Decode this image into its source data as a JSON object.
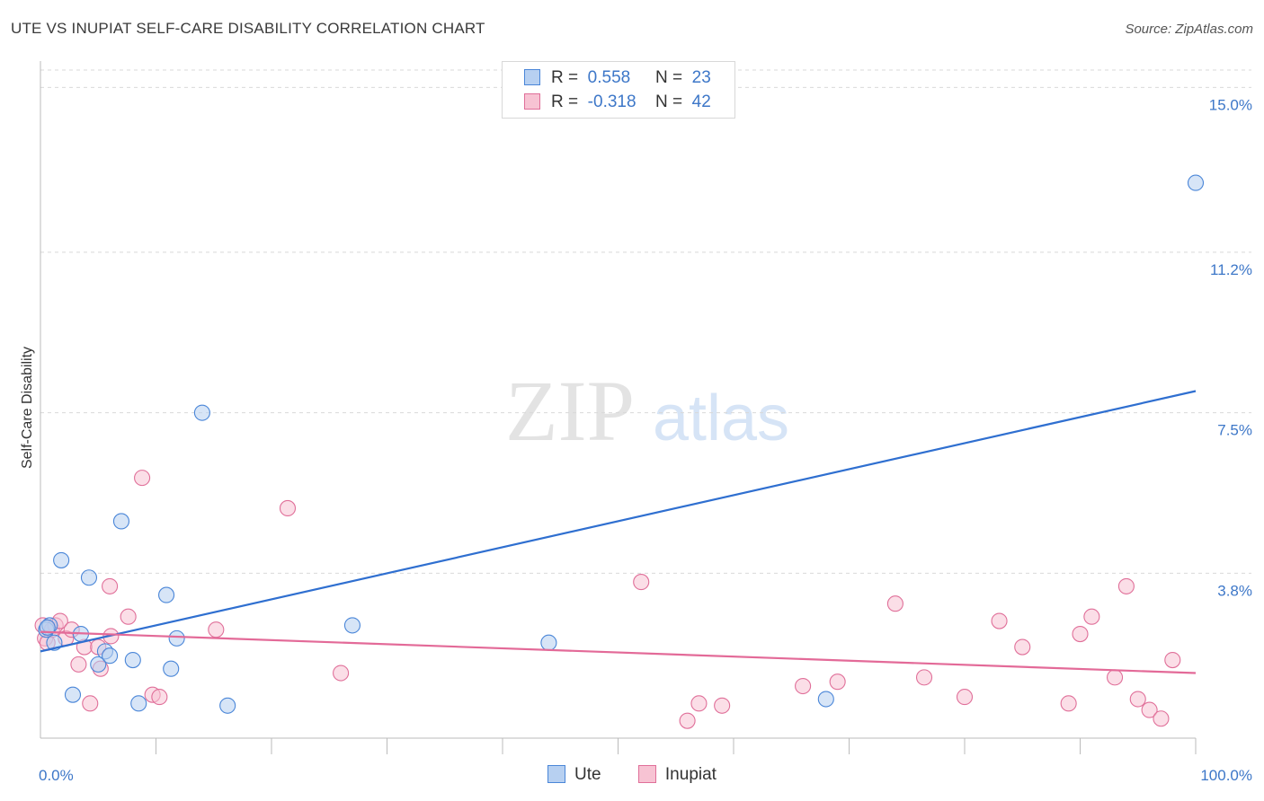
{
  "title": "UTE VS INUPIAT SELF-CARE DISABILITY CORRELATION CHART",
  "source": "Source: ZipAtlas.com",
  "watermark": {
    "zip": "ZIP",
    "atlas": "atlas"
  },
  "legend": {
    "rows": [
      {
        "r_label": "R =",
        "r_value": "0.558",
        "n_label": "N =",
        "n_value": "23"
      },
      {
        "r_label": "R =",
        "r_value": "-0.318",
        "n_label": "N =",
        "n_value": "42"
      }
    ]
  },
  "colors": {
    "ute": "#4a86d8",
    "ute_fill": "#b7d0f1",
    "inupiat": "#e06f99",
    "inupiat_fill": "#f7c3d3",
    "grid": "#d9d9d9",
    "tick_label": "#3d77c8"
  },
  "chart_data": {
    "type": "scatter",
    "title": "UTE VS INUPIAT SELF-CARE DISABILITY CORRELATION CHART",
    "xlabel": "",
    "ylabel": "Self-Care Disability",
    "xlim": [
      0,
      100
    ],
    "ylim": [
      0,
      15.4
    ],
    "x_tick_labels": [
      "0.0%",
      "100.0%"
    ],
    "y_ticks": [
      3.8,
      7.5,
      11.2,
      15.0
    ],
    "y_tick_labels": [
      "3.8%",
      "7.5%",
      "11.2%",
      "15.0%"
    ],
    "grid": true,
    "series": [
      {
        "name": "Ute",
        "r": 0.558,
        "n": 23,
        "trend": {
          "x": [
            0,
            100
          ],
          "y": [
            2.0,
            8.0
          ]
        },
        "points": [
          {
            "x": 0.5,
            "y": 2.5
          },
          {
            "x": 0.8,
            "y": 2.6
          },
          {
            "x": 1.2,
            "y": 2.2
          },
          {
            "x": 1.8,
            "y": 4.1
          },
          {
            "x": 2.8,
            "y": 1.0
          },
          {
            "x": 3.5,
            "y": 2.4
          },
          {
            "x": 4.2,
            "y": 3.7
          },
          {
            "x": 5.0,
            "y": 1.7
          },
          {
            "x": 5.6,
            "y": 2.0
          },
          {
            "x": 6.0,
            "y": 1.9
          },
          {
            "x": 7.0,
            "y": 5.0
          },
          {
            "x": 8.0,
            "y": 1.8
          },
          {
            "x": 8.5,
            "y": 0.8
          },
          {
            "x": 10.9,
            "y": 3.3
          },
          {
            "x": 11.3,
            "y": 1.6
          },
          {
            "x": 11.8,
            "y": 2.3
          },
          {
            "x": 14.0,
            "y": 7.5
          },
          {
            "x": 16.2,
            "y": 0.75
          },
          {
            "x": 27.0,
            "y": 2.6
          },
          {
            "x": 44.0,
            "y": 2.2
          },
          {
            "x": 68.0,
            "y": 0.9
          },
          {
            "x": 100.0,
            "y": 12.8
          },
          {
            "x": 0.6,
            "y": 2.55
          }
        ]
      },
      {
        "name": "Inupiat",
        "r": -0.318,
        "n": 42,
        "trend": {
          "x": [
            0,
            100
          ],
          "y": [
            2.45,
            1.5
          ]
        },
        "points": [
          {
            "x": 0.2,
            "y": 2.6
          },
          {
            "x": 0.4,
            "y": 2.3
          },
          {
            "x": 0.6,
            "y": 2.2
          },
          {
            "x": 1.0,
            "y": 2.5
          },
          {
            "x": 1.3,
            "y": 2.6
          },
          {
            "x": 1.7,
            "y": 2.7
          },
          {
            "x": 2.2,
            "y": 2.3
          },
          {
            "x": 2.7,
            "y": 2.5
          },
          {
            "x": 3.3,
            "y": 1.7
          },
          {
            "x": 3.8,
            "y": 2.1
          },
          {
            "x": 4.3,
            "y": 0.8
          },
          {
            "x": 5.0,
            "y": 2.1
          },
          {
            "x": 5.2,
            "y": 1.6
          },
          {
            "x": 6.0,
            "y": 3.5
          },
          {
            "x": 6.1,
            "y": 2.35
          },
          {
            "x": 7.6,
            "y": 2.8
          },
          {
            "x": 8.8,
            "y": 6.0
          },
          {
            "x": 9.7,
            "y": 1.0
          },
          {
            "x": 10.3,
            "y": 0.95
          },
          {
            "x": 15.2,
            "y": 2.5
          },
          {
            "x": 21.4,
            "y": 5.3
          },
          {
            "x": 26.0,
            "y": 1.5
          },
          {
            "x": 52.0,
            "y": 3.6
          },
          {
            "x": 56.0,
            "y": 0.4
          },
          {
            "x": 57.0,
            "y": 0.8
          },
          {
            "x": 59.0,
            "y": 0.75
          },
          {
            "x": 66.0,
            "y": 1.2
          },
          {
            "x": 69.0,
            "y": 1.3
          },
          {
            "x": 74.0,
            "y": 3.1
          },
          {
            "x": 76.5,
            "y": 1.4
          },
          {
            "x": 80.0,
            "y": 0.95
          },
          {
            "x": 83.0,
            "y": 2.7
          },
          {
            "x": 85.0,
            "y": 2.1
          },
          {
            "x": 89.0,
            "y": 0.8
          },
          {
            "x": 90.0,
            "y": 2.4
          },
          {
            "x": 91.0,
            "y": 2.8
          },
          {
            "x": 93.0,
            "y": 1.4
          },
          {
            "x": 94.0,
            "y": 3.5
          },
          {
            "x": 95.0,
            "y": 0.9
          },
          {
            "x": 96.0,
            "y": 0.65
          },
          {
            "x": 97.0,
            "y": 0.45
          },
          {
            "x": 98.0,
            "y": 1.8
          }
        ]
      }
    ]
  }
}
